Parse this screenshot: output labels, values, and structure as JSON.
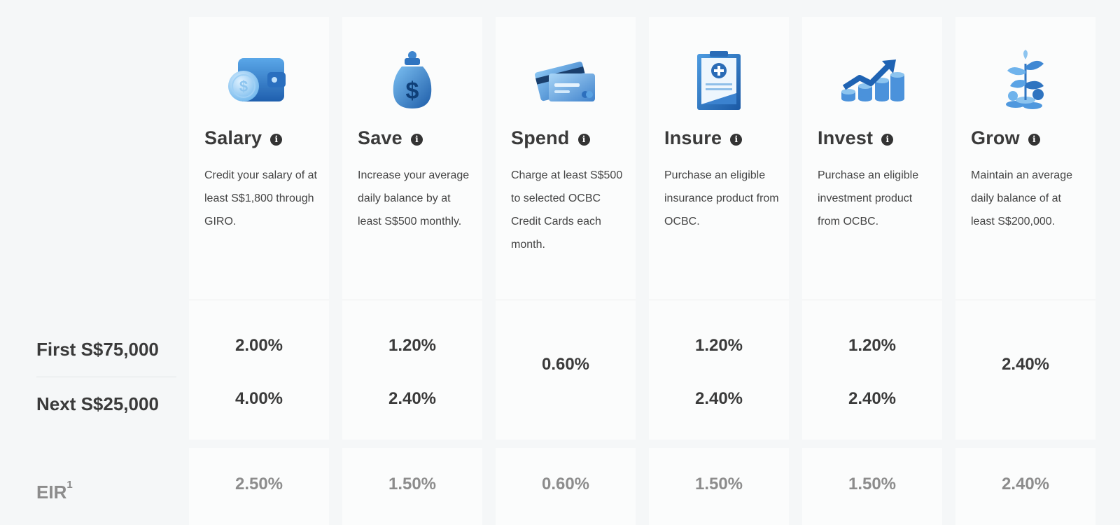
{
  "rows": {
    "first_label": "First S$75,000",
    "next_label": "Next S$25,000",
    "eir_label": "EIR",
    "eir_sup": "1"
  },
  "columns": [
    {
      "title": "Salary",
      "icon": "wallet-icon",
      "desc": "Credit your salary of at least S$1,800 through GIRO.",
      "first": "2.00%",
      "next": "4.00%",
      "eir": "2.50%"
    },
    {
      "title": "Save",
      "icon": "money-bag-icon",
      "desc": "Increase your average daily balance by at least S$500 monthly.",
      "first": "1.20%",
      "next": "2.40%",
      "eir": "1.50%"
    },
    {
      "title": "Spend",
      "icon": "credit-cards-icon",
      "desc": "Charge at least S$500 to selected OCBC Credit Cards each month.",
      "single": "0.60%",
      "eir": "0.60%"
    },
    {
      "title": "Insure",
      "icon": "insurance-document-icon",
      "desc": "Purchase an eligible insurance product from OCBC.",
      "first": "1.20%",
      "next": "2.40%",
      "eir": "1.50%"
    },
    {
      "title": "Invest",
      "icon": "investment-chart-icon",
      "desc": "Purchase an eligible investment product from OCBC.",
      "first": "1.20%",
      "next": "2.40%",
      "eir": "1.50%"
    },
    {
      "title": "Grow",
      "icon": "plant-coins-icon",
      "desc": "Maintain an average daily balance of at least S$200,000.",
      "single": "2.40%",
      "eir": "2.40%"
    }
  ]
}
